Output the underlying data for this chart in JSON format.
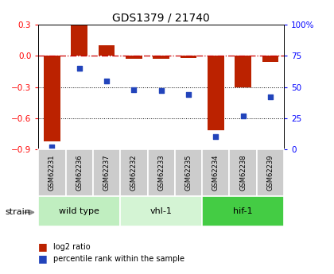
{
  "title": "GDS1379 / 21740",
  "samples": [
    "GSM62231",
    "GSM62236",
    "GSM62237",
    "GSM62232",
    "GSM62233",
    "GSM62235",
    "GSM62234",
    "GSM62238",
    "GSM62239"
  ],
  "log2_ratio": [
    -0.82,
    0.3,
    0.1,
    -0.03,
    -0.03,
    -0.02,
    -0.72,
    -0.3,
    -0.06
  ],
  "percentile_rank": [
    2,
    65,
    55,
    48,
    47,
    44,
    10,
    27,
    42
  ],
  "groups": [
    {
      "label": "wild type",
      "start": 0,
      "end": 3,
      "color": "#c0eec0"
    },
    {
      "label": "vhl-1",
      "start": 3,
      "end": 6,
      "color": "#d4f4d4"
    },
    {
      "label": "hif-1",
      "start": 6,
      "end": 9,
      "color": "#44cc44"
    }
  ],
  "ylim_left": [
    -0.9,
    0.3
  ],
  "ylim_right": [
    0,
    100
  ],
  "yticks_left": [
    -0.9,
    -0.6,
    -0.3,
    0.0,
    0.3
  ],
  "yticks_right": [
    0,
    25,
    50,
    75,
    100
  ],
  "bar_color": "#bb2200",
  "dot_color": "#2244bb",
  "hline_color": "#cc0000",
  "grid_color": "#000000",
  "strain_label": "strain"
}
